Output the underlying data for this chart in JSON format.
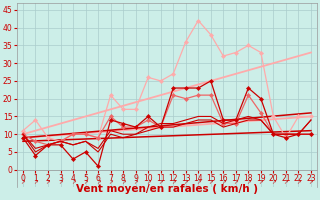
{
  "background_color": "#cceee8",
  "grid_color": "#aacccc",
  "x_label": "Vent moyen/en rafales ( km/h )",
  "x_ticks": [
    0,
    1,
    2,
    3,
    4,
    5,
    6,
    7,
    8,
    9,
    10,
    11,
    12,
    13,
    14,
    15,
    16,
    17,
    18,
    19,
    20,
    21,
    22,
    23
  ],
  "ylim": [
    -5,
    47
  ],
  "xlim": [
    -0.5,
    23.5
  ],
  "y_ticks": [
    0,
    5,
    10,
    15,
    20,
    25,
    30,
    35,
    40,
    45
  ],
  "series": [
    {
      "comment": "light pink jagged line with markers - rafales high",
      "x": [
        0,
        1,
        2,
        3,
        4,
        5,
        6,
        7,
        8,
        9,
        10,
        11,
        12,
        13,
        14,
        15,
        16,
        17,
        18,
        19,
        20,
        21,
        22,
        23
      ],
      "y": [
        11,
        14,
        9,
        8,
        10,
        10,
        9,
        21,
        17,
        17,
        26,
        25,
        27,
        36,
        42,
        38,
        32,
        33,
        35,
        33,
        15,
        9,
        15,
        15
      ],
      "color": "#ffaaaa",
      "linewidth": 0.9,
      "marker": "D",
      "markersize": 2.2,
      "zorder": 4
    },
    {
      "comment": "upper diagonal trend line - light pink",
      "x": [
        0,
        23
      ],
      "y": [
        10,
        33
      ],
      "color": "#ffaaaa",
      "linewidth": 1.3,
      "marker": null,
      "markersize": 0,
      "zorder": 3
    },
    {
      "comment": "lower diagonal trend line - light pink",
      "x": [
        0,
        23
      ],
      "y": [
        9,
        15
      ],
      "color": "#ffaaaa",
      "linewidth": 1.3,
      "marker": null,
      "markersize": 0,
      "zorder": 3
    },
    {
      "comment": "medium pink line with markers - vent moyen jagged",
      "x": [
        0,
        1,
        2,
        3,
        4,
        5,
        6,
        7,
        8,
        9,
        10,
        11,
        12,
        13,
        14,
        15,
        16,
        17,
        18,
        19,
        20,
        21,
        22,
        23
      ],
      "y": [
        10,
        8,
        7,
        8,
        10,
        10,
        9,
        15,
        12,
        12,
        14,
        12,
        21,
        20,
        21,
        21,
        13,
        13,
        21,
        16,
        10,
        10,
        10,
        10
      ],
      "color": "#ee6666",
      "linewidth": 0.9,
      "marker": "D",
      "markersize": 2.2,
      "zorder": 4
    },
    {
      "comment": "dark red jagged with markers",
      "x": [
        0,
        1,
        2,
        3,
        4,
        5,
        6,
        7,
        8,
        9,
        10,
        11,
        12,
        13,
        14,
        15,
        16,
        17,
        18,
        19,
        20,
        21,
        22,
        23
      ],
      "y": [
        9,
        4,
        7,
        7,
        3,
        5,
        1,
        14,
        13,
        12,
        15,
        12,
        23,
        23,
        23,
        25,
        14,
        14,
        23,
        20,
        10,
        9,
        10,
        10
      ],
      "color": "#cc0000",
      "linewidth": 0.9,
      "marker": "D",
      "markersize": 2.2,
      "zorder": 5
    },
    {
      "comment": "dark red smooth line 1",
      "x": [
        0,
        1,
        2,
        3,
        4,
        5,
        6,
        7,
        8,
        9,
        10,
        11,
        12,
        13,
        14,
        15,
        16,
        17,
        18,
        19,
        20,
        21,
        22,
        23
      ],
      "y": [
        10,
        6,
        7,
        8,
        7,
        8,
        6,
        11,
        10,
        10,
        12,
        13,
        13,
        14,
        15,
        15,
        13,
        14,
        15,
        14,
        10,
        10,
        10,
        14
      ],
      "color": "#cc0000",
      "linewidth": 0.8,
      "marker": null,
      "markersize": 0,
      "zorder": 4
    },
    {
      "comment": "dark red smooth line 2",
      "x": [
        0,
        1,
        2,
        3,
        4,
        5,
        6,
        7,
        8,
        9,
        10,
        11,
        12,
        13,
        14,
        15,
        16,
        17,
        18,
        19,
        20,
        21,
        22,
        23
      ],
      "y": [
        10,
        5,
        7,
        8,
        7,
        8,
        5,
        10,
        9,
        10,
        11,
        12,
        12,
        13,
        14,
        14,
        12,
        13,
        14,
        14,
        10,
        10,
        10,
        14
      ],
      "color": "#cc0000",
      "linewidth": 0.8,
      "marker": null,
      "markersize": 0,
      "zorder": 4
    },
    {
      "comment": "upper diagonal trend dark red",
      "x": [
        0,
        23
      ],
      "y": [
        9,
        16
      ],
      "color": "#cc0000",
      "linewidth": 1.1,
      "marker": null,
      "markersize": 0,
      "zorder": 3
    },
    {
      "comment": "lower diagonal trend dark red",
      "x": [
        0,
        23
      ],
      "y": [
        8,
        11
      ],
      "color": "#cc0000",
      "linewidth": 1.1,
      "marker": null,
      "markersize": 0,
      "zorder": 3
    }
  ],
  "label_color": "#cc0000",
  "tick_fontsize": 5.5,
  "xlabel_fontsize": 7.5
}
